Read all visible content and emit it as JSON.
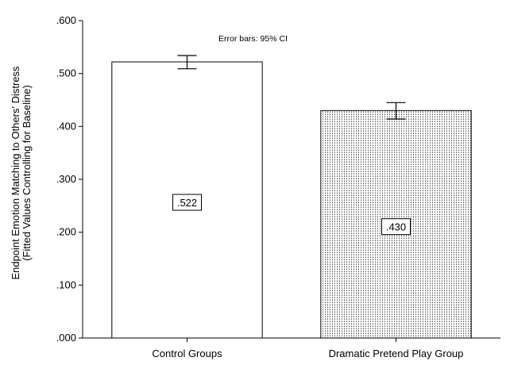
{
  "chart_data": {
    "type": "bar",
    "categories": [
      "Control Groups",
      "Dramatic Pretend Play Group"
    ],
    "values": [
      0.522,
      0.43
    ],
    "value_labels": [
      ".522",
      ".430"
    ],
    "error_bars": [
      {
        "low": 0.509,
        "high": 0.534
      },
      {
        "low": 0.414,
        "high": 0.445
      }
    ],
    "ylabel_line1": "Endpoint Emotion Matching to Others' Distress",
    "ylabel_line2": "(Fitted Values Controlling for Baseline)",
    "annotation": "Error bars: 95% CI",
    "ylim": [
      0,
      0.6
    ],
    "yticks": [
      0,
      0.1,
      0.2,
      0.3,
      0.4,
      0.5,
      0.6
    ],
    "ytick_labels": [
      ".000",
      ".100",
      ".200",
      ".300",
      ".400",
      ".500",
      ".600"
    ],
    "bar_fills": [
      "plain",
      "dotted"
    ],
    "grid": false
  }
}
